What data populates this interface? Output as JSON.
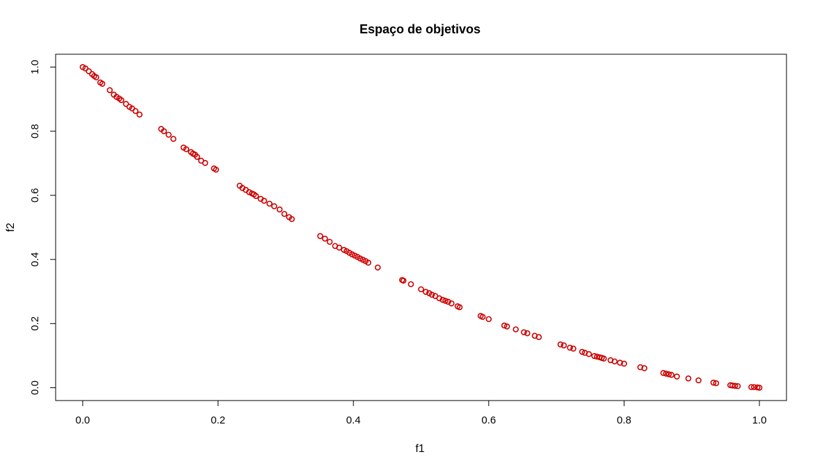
{
  "chart_data": {
    "type": "scatter",
    "title": "Espaço de objetivos",
    "xlabel": "f1",
    "ylabel": "f2",
    "xlim": [
      -0.04,
      1.04
    ],
    "ylim": [
      -0.04,
      1.04
    ],
    "x_ticks": [
      "0.0",
      "0.2",
      "0.4",
      "0.6",
      "0.8",
      "1.0"
    ],
    "y_ticks": [
      "0.0",
      "0.2",
      "0.4",
      "0.6",
      "0.8",
      "1.0"
    ],
    "x_tick_values": [
      0,
      0.2,
      0.4,
      0.6,
      0.8,
      1.0
    ],
    "y_tick_values": [
      0,
      0.2,
      0.4,
      0.6,
      0.8,
      1.0
    ],
    "grid": false,
    "marker": "open-circle",
    "point_color": "#cc0000",
    "series": [
      {
        "x": [
          0.0,
          0.004,
          0.009,
          0.014,
          0.017,
          0.02,
          0.026,
          0.029,
          0.04,
          0.046,
          0.05,
          0.054,
          0.057,
          0.064,
          0.069,
          0.073,
          0.078,
          0.084,
          0.116,
          0.12,
          0.127,
          0.134,
          0.149,
          0.153,
          0.16,
          0.163,
          0.166,
          0.169,
          0.175,
          0.181,
          0.194,
          0.197,
          0.232,
          0.236,
          0.241,
          0.246,
          0.25,
          0.253,
          0.256,
          0.263,
          0.268,
          0.276,
          0.283,
          0.291,
          0.298,
          0.305,
          0.309,
          0.351,
          0.358,
          0.365,
          0.373,
          0.379,
          0.386,
          0.39,
          0.394,
          0.398,
          0.402,
          0.406,
          0.41,
          0.414,
          0.418,
          0.422,
          0.436,
          0.472,
          0.474,
          0.485,
          0.5,
          0.507,
          0.512,
          0.516,
          0.521,
          0.527,
          0.532,
          0.536,
          0.54,
          0.545,
          0.554,
          0.557,
          0.588,
          0.591,
          0.6,
          0.623,
          0.627,
          0.64,
          0.652,
          0.657,
          0.668,
          0.674,
          0.706,
          0.711,
          0.72,
          0.725,
          0.738,
          0.742,
          0.748,
          0.756,
          0.76,
          0.764,
          0.767,
          0.77,
          0.78,
          0.786,
          0.794,
          0.8,
          0.824,
          0.83,
          0.858,
          0.862,
          0.866,
          0.87,
          0.878,
          0.895,
          0.91,
          0.932,
          0.936,
          0.957,
          0.96,
          0.964,
          0.968,
          0.988,
          0.992,
          0.997,
          1.0
        ],
        "y": [
          1.0,
          0.996,
          0.987,
          0.978,
          0.972,
          0.968,
          0.952,
          0.948,
          0.928,
          0.914,
          0.907,
          0.902,
          0.897,
          0.885,
          0.876,
          0.871,
          0.863,
          0.852,
          0.807,
          0.8,
          0.789,
          0.776,
          0.749,
          0.744,
          0.735,
          0.73,
          0.727,
          0.72,
          0.708,
          0.701,
          0.684,
          0.68,
          0.63,
          0.623,
          0.617,
          0.61,
          0.606,
          0.603,
          0.598,
          0.589,
          0.583,
          0.574,
          0.566,
          0.556,
          0.542,
          0.532,
          0.526,
          0.473,
          0.465,
          0.455,
          0.442,
          0.437,
          0.43,
          0.426,
          0.421,
          0.416,
          0.412,
          0.408,
          0.403,
          0.399,
          0.395,
          0.39,
          0.375,
          0.336,
          0.334,
          0.323,
          0.307,
          0.299,
          0.295,
          0.29,
          0.286,
          0.279,
          0.274,
          0.271,
          0.268,
          0.263,
          0.254,
          0.251,
          0.224,
          0.221,
          0.214,
          0.194,
          0.191,
          0.182,
          0.173,
          0.17,
          0.162,
          0.158,
          0.135,
          0.132,
          0.125,
          0.122,
          0.112,
          0.109,
          0.105,
          0.099,
          0.097,
          0.095,
          0.093,
          0.091,
          0.086,
          0.082,
          0.078,
          0.075,
          0.064,
          0.061,
          0.046,
          0.044,
          0.042,
          0.04,
          0.035,
          0.029,
          0.023,
          0.016,
          0.014,
          0.008,
          0.007,
          0.006,
          0.005,
          0.002,
          0.002,
          0.001,
          0.0
        ]
      }
    ]
  }
}
